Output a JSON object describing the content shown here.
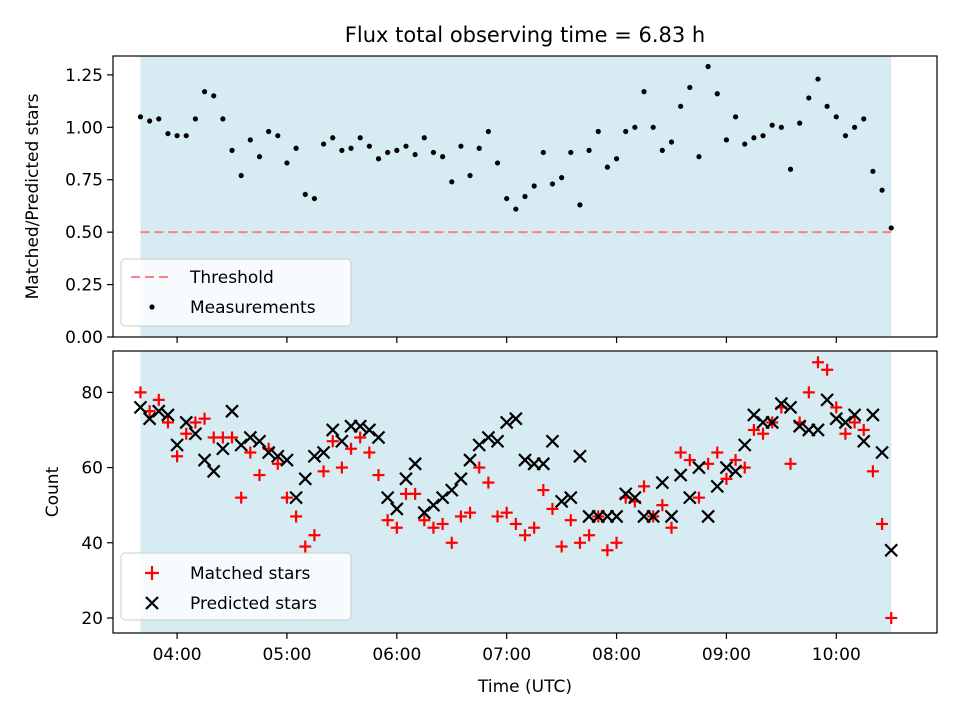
{
  "title": "Flux total observing time = 6.83 h",
  "colors": {
    "shade": "#add8e6",
    "threshold": "#ff7f7f",
    "matched": "#ff0000",
    "predicted": "#000000",
    "measurements": "#000000"
  },
  "chart_data": [
    {
      "type": "scatter",
      "title": "Flux total observing time = 6.83 h",
      "xlabel": "",
      "ylabel": "Matched/Predicted stars",
      "xlim": [
        "03:25",
        "10:55"
      ],
      "ylim": [
        0,
        1.34
      ],
      "yticks": [
        "0.00",
        "0.25",
        "0.50",
        "0.75",
        "1.00",
        "1.25"
      ],
      "shaded_interval": [
        "03:40",
        "10:30"
      ],
      "legend_position": "lower-left",
      "legend": [
        "Threshold",
        "Measurements"
      ],
      "threshold": {
        "name": "Threshold",
        "value": 0.5,
        "style": "dashed"
      },
      "series": [
        {
          "name": "Measurements",
          "x": [
            "03:40",
            "03:45",
            "03:50",
            "03:55",
            "04:00",
            "04:05",
            "04:10",
            "04:15",
            "04:20",
            "04:25",
            "04:30",
            "04:35",
            "04:40",
            "04:45",
            "04:50",
            "04:55",
            "05:00",
            "05:05",
            "05:10",
            "05:15",
            "05:20",
            "05:25",
            "05:30",
            "05:35",
            "05:40",
            "05:45",
            "05:50",
            "05:55",
            "06:00",
            "06:05",
            "06:10",
            "06:15",
            "06:20",
            "06:25",
            "06:30",
            "06:35",
            "06:40",
            "06:45",
            "06:50",
            "06:55",
            "07:00",
            "07:05",
            "07:10",
            "07:15",
            "07:20",
            "07:25",
            "07:30",
            "07:35",
            "07:40",
            "07:45",
            "07:50",
            "07:55",
            "08:00",
            "08:05",
            "08:10",
            "08:15",
            "08:20",
            "08:25",
            "08:30",
            "08:35",
            "08:40",
            "08:45",
            "08:50",
            "08:55",
            "09:00",
            "09:05",
            "09:10",
            "09:15",
            "09:20",
            "09:25",
            "09:30",
            "09:35",
            "09:40",
            "09:45",
            "09:50",
            "09:55",
            "10:00",
            "10:05",
            "10:10",
            "10:15",
            "10:20",
            "10:25",
            "10:30"
          ],
          "y": [
            1.05,
            1.03,
            1.04,
            0.97,
            0.96,
            0.96,
            1.04,
            1.17,
            1.15,
            1.04,
            0.89,
            0.77,
            0.94,
            0.86,
            0.98,
            0.96,
            0.83,
            0.9,
            0.68,
            0.66,
            0.92,
            0.95,
            0.89,
            0.9,
            0.95,
            0.91,
            0.85,
            0.88,
            0.89,
            0.91,
            0.87,
            0.95,
            0.88,
            0.86,
            0.74,
            0.91,
            0.77,
            0.9,
            0.98,
            0.83,
            0.66,
            0.61,
            0.67,
            0.72,
            0.88,
            0.73,
            0.76,
            0.88,
            0.63,
            0.89,
            0.98,
            0.81,
            0.85,
            0.98,
            1.0,
            1.17,
            1.0,
            0.89,
            0.93,
            1.1,
            1.19,
            0.86,
            1.29,
            1.16,
            0.94,
            1.05,
            0.92,
            0.95,
            0.96,
            1.01,
            1.0,
            0.8,
            1.02,
            1.14,
            1.23,
            1.1,
            1.05,
            0.96,
            1.0,
            1.04,
            0.79,
            0.7,
            0.52
          ]
        }
      ]
    },
    {
      "type": "scatter",
      "title": "",
      "xlabel": "Time (UTC)",
      "ylabel": "Count",
      "xlim": [
        "03:25",
        "10:55"
      ],
      "xticks": [
        "04:00",
        "05:00",
        "06:00",
        "07:00",
        "08:00",
        "09:00",
        "10:00"
      ],
      "ylim": [
        16,
        91
      ],
      "yticks": [
        "20",
        "40",
        "60",
        "80"
      ],
      "shaded_interval": [
        "03:40",
        "10:30"
      ],
      "legend_position": "lower-left",
      "legend": [
        "Matched stars",
        "Predicted stars"
      ],
      "series": [
        {
          "name": "Matched stars",
          "marker": "+",
          "x": [
            "03:40",
            "03:45",
            "03:50",
            "03:55",
            "04:00",
            "04:05",
            "04:10",
            "04:15",
            "04:20",
            "04:25",
            "04:30",
            "04:35",
            "04:40",
            "04:45",
            "04:50",
            "04:55",
            "05:00",
            "05:05",
            "05:10",
            "05:15",
            "05:20",
            "05:25",
            "05:30",
            "05:35",
            "05:40",
            "05:45",
            "05:50",
            "05:55",
            "06:00",
            "06:05",
            "06:10",
            "06:15",
            "06:20",
            "06:25",
            "06:30",
            "06:35",
            "06:40",
            "06:45",
            "06:50",
            "06:55",
            "07:00",
            "07:05",
            "07:10",
            "07:15",
            "07:20",
            "07:25",
            "07:30",
            "07:35",
            "07:40",
            "07:45",
            "07:50",
            "07:55",
            "08:00",
            "08:05",
            "08:10",
            "08:15",
            "08:20",
            "08:25",
            "08:30",
            "08:35",
            "08:40",
            "08:45",
            "08:50",
            "08:55",
            "09:00",
            "09:05",
            "09:10",
            "09:15",
            "09:20",
            "09:25",
            "09:30",
            "09:35",
            "09:40",
            "09:45",
            "09:50",
            "09:55",
            "10:00",
            "10:05",
            "10:10",
            "10:15",
            "10:20",
            "10:25",
            "10:30"
          ],
          "y": [
            80,
            75,
            78,
            72,
            63,
            69,
            72,
            73,
            68,
            68,
            68,
            52,
            64,
            58,
            65,
            61,
            52,
            47,
            39,
            42,
            59,
            67,
            60,
            65,
            68,
            64,
            58,
            46,
            44,
            53,
            53,
            46,
            44,
            45,
            40,
            47,
            48,
            60,
            56,
            47,
            48,
            45,
            42,
            44,
            54,
            49,
            39,
            46,
            40,
            42,
            47,
            38,
            40,
            52,
            51,
            55,
            47,
            50,
            44,
            64,
            62,
            52,
            61,
            64,
            57,
            62,
            60,
            70,
            69,
            72,
            76,
            61,
            72,
            80,
            88,
            86,
            76,
            69,
            72,
            70,
            59,
            45,
            20
          ]
        },
        {
          "name": "Predicted stars",
          "marker": "x",
          "x": [
            "03:40",
            "03:45",
            "03:50",
            "03:55",
            "04:00",
            "04:05",
            "04:10",
            "04:15",
            "04:20",
            "04:25",
            "04:30",
            "04:35",
            "04:40",
            "04:45",
            "04:50",
            "04:55",
            "05:00",
            "05:05",
            "05:10",
            "05:15",
            "05:20",
            "05:25",
            "05:30",
            "05:35",
            "05:40",
            "05:45",
            "05:50",
            "05:55",
            "06:00",
            "06:05",
            "06:10",
            "06:15",
            "06:20",
            "06:25",
            "06:30",
            "06:35",
            "06:40",
            "06:45",
            "06:50",
            "06:55",
            "07:00",
            "07:05",
            "07:10",
            "07:15",
            "07:20",
            "07:25",
            "07:30",
            "07:35",
            "07:40",
            "07:45",
            "07:50",
            "07:55",
            "08:00",
            "08:05",
            "08:10",
            "08:15",
            "08:20",
            "08:25",
            "08:30",
            "08:35",
            "08:40",
            "08:45",
            "08:50",
            "08:55",
            "09:00",
            "09:05",
            "09:10",
            "09:15",
            "09:20",
            "09:25",
            "09:30",
            "09:35",
            "09:40",
            "09:45",
            "09:50",
            "09:55",
            "10:00",
            "10:05",
            "10:10",
            "10:15",
            "10:20",
            "10:25",
            "10:30"
          ],
          "y": [
            76,
            73,
            75,
            74,
            66,
            72,
            69,
            62,
            59,
            65,
            75,
            66,
            68,
            67,
            64,
            63,
            62,
            52,
            57,
            63,
            64,
            70,
            67,
            71,
            71,
            70,
            68,
            52,
            49,
            57,
            61,
            48,
            50,
            52,
            54,
            57,
            62,
            66,
            68,
            67,
            72,
            73,
            62,
            61,
            61,
            67,
            51,
            52,
            63,
            47,
            47,
            47,
            47,
            53,
            52,
            47,
            47,
            56,
            47,
            58,
            52,
            60,
            47,
            55,
            60,
            59,
            66,
            74,
            72,
            72,
            77,
            76,
            71,
            70,
            70,
            78,
            73,
            72,
            74,
            67,
            74,
            64,
            38
          ]
        }
      ]
    }
  ]
}
